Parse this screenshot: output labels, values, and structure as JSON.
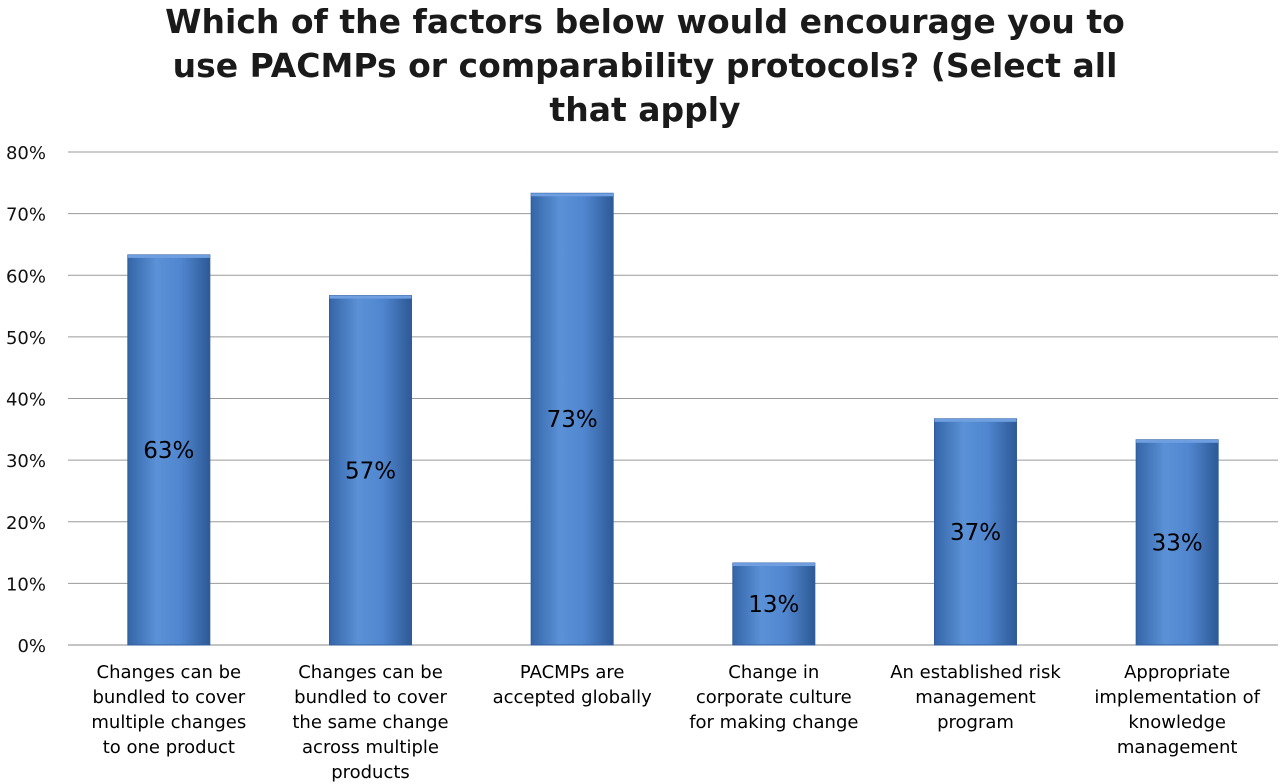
{
  "chart_data": {
    "type": "bar",
    "title_lines": [
      "Which of the factors below would encourage you to",
      "use PACMPs or comparability protocols? (Select all",
      "that apply"
    ],
    "categories": [
      [
        "Changes can be",
        "bundled to cover",
        "multiple changes",
        "to one product"
      ],
      [
        "Changes can be",
        "bundled to cover",
        "the same change",
        "across multiple",
        "products"
      ],
      [
        "PACMPs are",
        "accepted globally"
      ],
      [
        "Change in",
        "corporate culture",
        "for making change"
      ],
      [
        "An established risk",
        "management",
        "program"
      ],
      [
        "Appropriate",
        "implementation of",
        "knowledge",
        "management"
      ]
    ],
    "values": [
      63.3,
      56.7,
      73.3,
      13.3,
      36.7,
      33.3
    ],
    "data_labels": [
      "63%",
      "57%",
      "73%",
      "13%",
      "37%",
      "33%"
    ],
    "ylim": [
      0,
      80
    ],
    "y_ticks": [
      "0%",
      "10%",
      "20%",
      "30%",
      "40%",
      "50%",
      "60%",
      "70%",
      "80%"
    ],
    "grid": true,
    "legend": "none",
    "bar_color": "#4a7ec6",
    "bar_edge_color": "#2f5d9e"
  }
}
